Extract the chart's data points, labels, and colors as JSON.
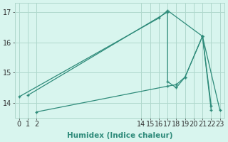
{
  "line1_x": [
    0,
    16,
    17,
    21,
    22
  ],
  "line1_y": [
    14.2,
    16.8,
    17.05,
    16.2,
    13.9
  ],
  "line2_x": [
    1,
    17,
    17,
    18,
    19,
    21,
    22
  ],
  "line2_y": [
    14.25,
    17.0,
    14.7,
    14.5,
    14.85,
    16.2,
    13.75
  ],
  "line3_x": [
    2,
    17,
    18,
    19,
    21,
    23
  ],
  "line3_y": [
    13.7,
    14.55,
    14.6,
    14.85,
    16.2,
    13.75
  ],
  "line_color": "#2e8b7a",
  "bg_color": "#d8f5ee",
  "grid_color": "#afd8cc",
  "xlabel": "Humidex (Indice chaleur)",
  "xlim": [
    -0.5,
    23.5
  ],
  "ylim": [
    13.5,
    17.3
  ],
  "yticks": [
    14,
    15,
    16,
    17
  ],
  "xticks": [
    0,
    1,
    2,
    14,
    15,
    16,
    17,
    18,
    19,
    20,
    21,
    22,
    23
  ],
  "xlabel_fontsize": 7.5,
  "tick_fontsize": 7.0
}
